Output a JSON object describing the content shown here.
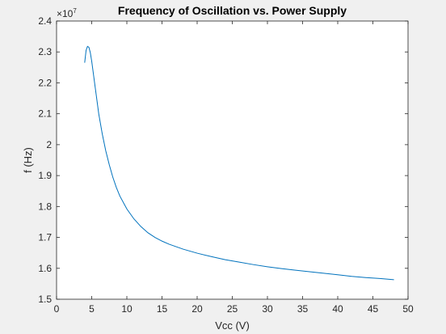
{
  "chart_data": {
    "type": "line",
    "title": "Frequency of Oscillation vs. Power Supply",
    "xlabel": "Vcc (V)",
    "ylabel": "f (Hz)",
    "xlim": [
      0,
      50
    ],
    "ylim": [
      1.5,
      2.4
    ],
    "y_multiplier_base": "×10",
    "y_multiplier_exp": "7",
    "xticks": [
      "0",
      "5",
      "10",
      "15",
      "20",
      "25",
      "30",
      "35",
      "40",
      "45",
      "50"
    ],
    "yticks": [
      "1.5",
      "1.6",
      "1.7",
      "1.8",
      "1.9",
      "2",
      "2.1",
      "2.2",
      "2.3",
      "2.4"
    ],
    "grid": false,
    "series": [
      {
        "color": "#0072bd",
        "x": [
          4.0,
          4.2,
          4.4,
          4.6,
          4.8,
          5.0,
          5.5,
          6.0,
          6.5,
          7.0,
          7.5,
          8.0,
          8.5,
          9.0,
          10,
          11,
          12,
          13,
          14,
          15,
          16,
          18,
          20,
          22,
          24,
          26,
          28,
          30,
          32,
          34,
          36,
          38,
          40,
          42,
          44,
          46,
          48
        ],
        "y": [
          2.265,
          2.305,
          2.318,
          2.315,
          2.298,
          2.27,
          2.185,
          2.1,
          2.035,
          1.98,
          1.935,
          1.895,
          1.862,
          1.834,
          1.792,
          1.76,
          1.735,
          1.715,
          1.7,
          1.688,
          1.678,
          1.662,
          1.649,
          1.638,
          1.628,
          1.62,
          1.612,
          1.605,
          1.599,
          1.594,
          1.589,
          1.584,
          1.579,
          1.574,
          1.57,
          1.567,
          1.563
        ]
      }
    ]
  }
}
